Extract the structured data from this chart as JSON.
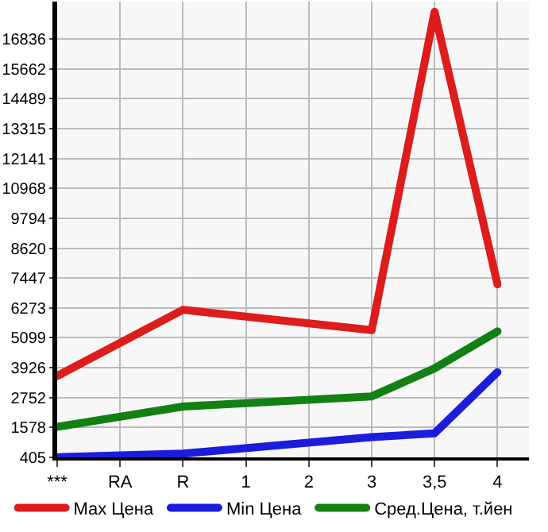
{
  "chart_data": {
    "type": "line",
    "categories": [
      "***",
      "RA",
      "R",
      "1",
      "2",
      "3",
      "3,5",
      "4"
    ],
    "series": [
      {
        "name": "Max Цена",
        "color": "#dd1c1c",
        "values": [
          3600,
          null,
          6200,
          null,
          null,
          5400,
          17900,
          7200
        ]
      },
      {
        "name": "Min Цена",
        "color": "#1c1cdd",
        "values": [
          410,
          null,
          550,
          null,
          null,
          1200,
          1350,
          3750
        ]
      },
      {
        "name": "Сред.Цена, т.йен",
        "color": "#138013",
        "values": [
          1600,
          null,
          2400,
          null,
          null,
          2800,
          3900,
          5350
        ]
      }
    ],
    "ylim": [
      405,
      18300
    ],
    "yticks": [
      405,
      1578,
      2752,
      3926,
      5099,
      6273,
      7447,
      8620,
      9794,
      10968,
      12141,
      13315,
      14489,
      15662,
      16836
    ],
    "grid": true,
    "legend": "bottom",
    "marker": "none",
    "line_style": "solid"
  }
}
